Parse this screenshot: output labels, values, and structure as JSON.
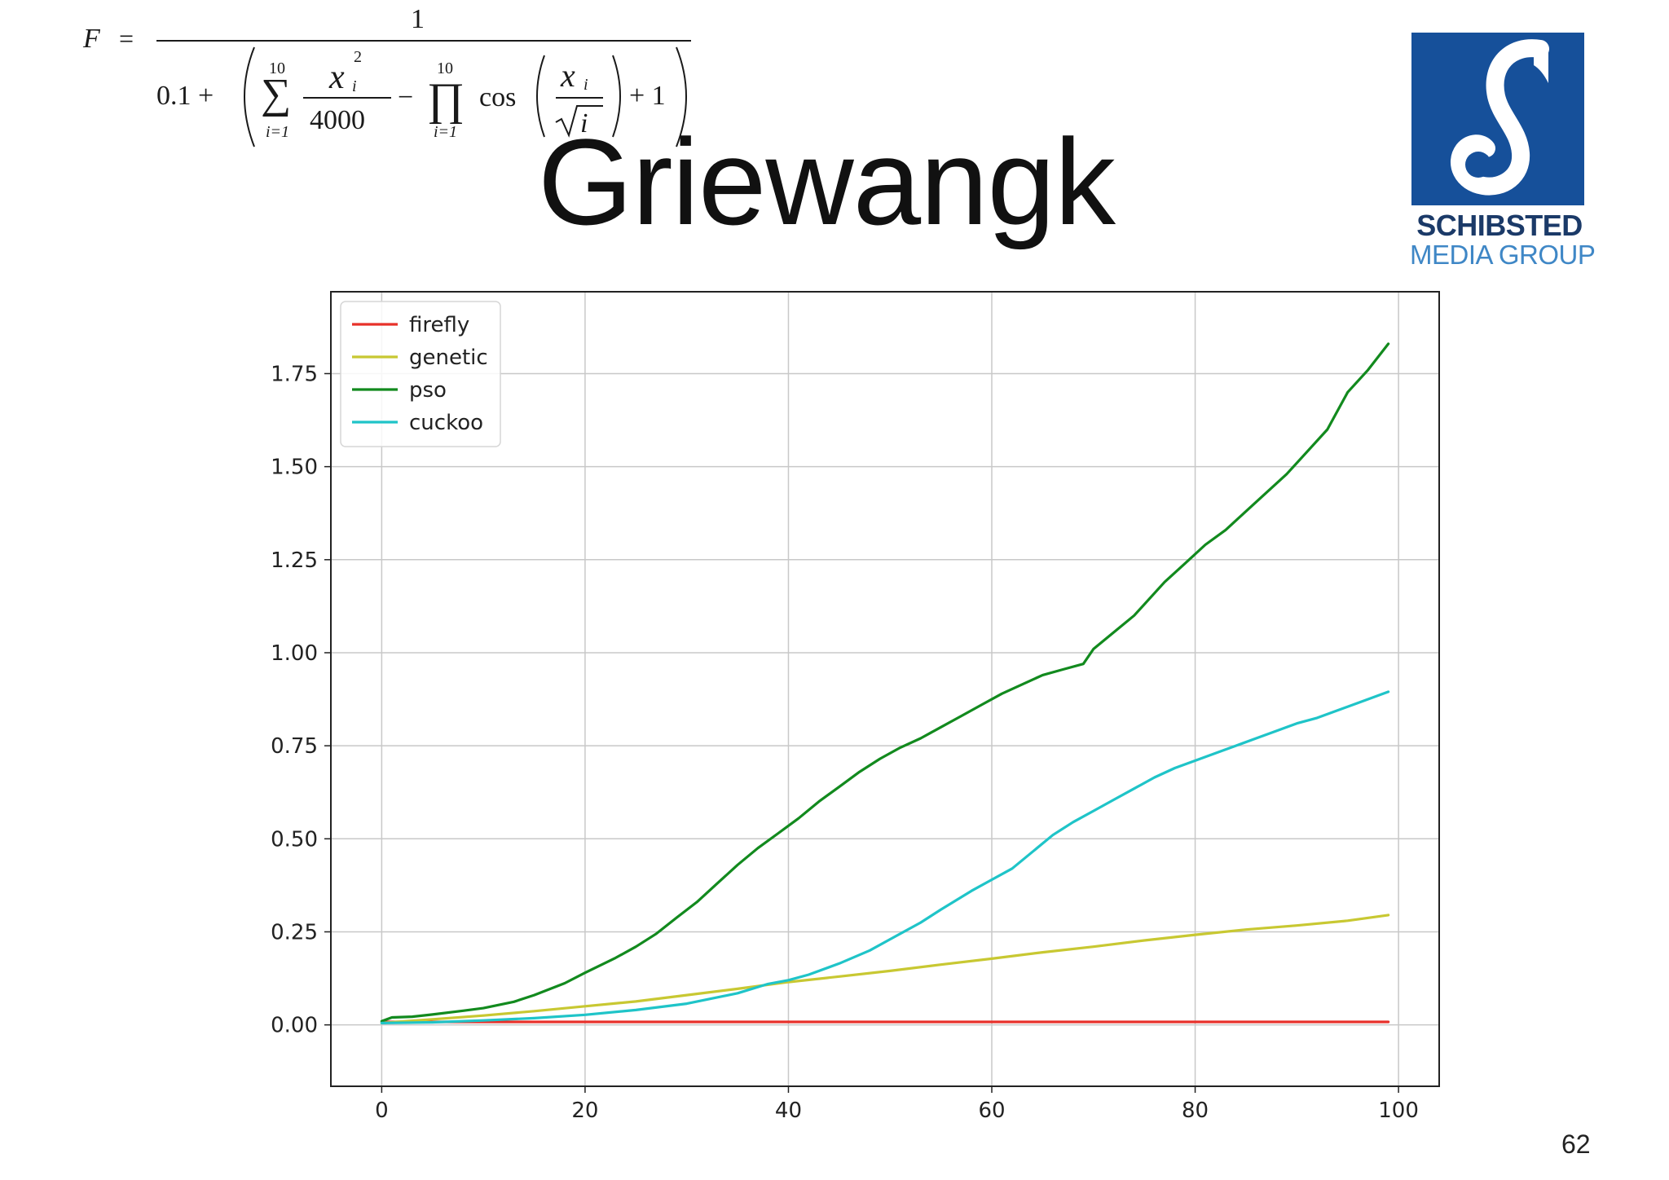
{
  "slide": {
    "title": "Griewangk",
    "page_number": "62"
  },
  "formula": {
    "lhs": "F",
    "equals": "=",
    "numerator": "1",
    "const": "0.1 +",
    "sum_upper": "10",
    "sum_lower": "i=1",
    "x_var": "x",
    "sub_i": "i",
    "exp_2": "2",
    "divisor": "4000",
    "minus": "−",
    "prod_upper": "10",
    "prod_lower": "i=1",
    "cos": "cos",
    "sqrt_i": "i",
    "plus_one": "+ 1"
  },
  "logo": {
    "brand_name": "SCHIBSTED",
    "brand_sub": "MEDIA GROUP",
    "box_color": "#16509a"
  },
  "chart_data": {
    "type": "line",
    "title": "",
    "xlabel": "",
    "ylabel": "",
    "xlim": [
      -5,
      104
    ],
    "ylim": [
      -0.165,
      1.97
    ],
    "grid": true,
    "legend_position": "top-left",
    "x_ticks": [
      0,
      20,
      40,
      60,
      80,
      100
    ],
    "x_tick_labels": [
      "0",
      "20",
      "40",
      "60",
      "80",
      "100"
    ],
    "y_ticks": [
      0,
      0.25,
      0.5,
      0.75,
      1.0,
      1.25,
      1.5,
      1.75
    ],
    "y_tick_labels": [
      "0.00",
      "0.25",
      "0.50",
      "0.75",
      "1.00",
      "1.25",
      "1.50",
      "1.75"
    ],
    "series": [
      {
        "name": "firefly",
        "color": "#e8312a",
        "x": [
          0,
          99
        ],
        "y": [
          0.008,
          0.008
        ]
      },
      {
        "name": "genetic",
        "color": "#c8c832",
        "x": [
          0,
          5,
          10,
          15,
          20,
          25,
          30,
          35,
          40,
          45,
          50,
          55,
          60,
          65,
          70,
          75,
          80,
          85,
          90,
          95,
          99
        ],
        "y": [
          0.005,
          0.015,
          0.025,
          0.037,
          0.05,
          0.063,
          0.08,
          0.097,
          0.115,
          0.13,
          0.145,
          0.162,
          0.178,
          0.195,
          0.21,
          0.227,
          0.242,
          0.256,
          0.267,
          0.28,
          0.295
        ]
      },
      {
        "name": "pso",
        "color": "#128a1e",
        "x": [
          0,
          1,
          3,
          5,
          8,
          10,
          13,
          15,
          18,
          20,
          23,
          25,
          27,
          29,
          31,
          33,
          35,
          37,
          39,
          41,
          43,
          45,
          47,
          49,
          51,
          53,
          55,
          57,
          59,
          61,
          63,
          65,
          67,
          69,
          70,
          72,
          74,
          76,
          77,
          79,
          81,
          83,
          85,
          87,
          89,
          91,
          93,
          95,
          97,
          99
        ],
        "y": [
          0.01,
          0.02,
          0.022,
          0.028,
          0.038,
          0.045,
          0.062,
          0.08,
          0.112,
          0.14,
          0.18,
          0.21,
          0.245,
          0.288,
          0.33,
          0.38,
          0.43,
          0.475,
          0.515,
          0.555,
          0.6,
          0.64,
          0.68,
          0.715,
          0.745,
          0.77,
          0.8,
          0.83,
          0.86,
          0.89,
          0.915,
          0.94,
          0.955,
          0.97,
          1.01,
          1.055,
          1.1,
          1.16,
          1.19,
          1.24,
          1.29,
          1.33,
          1.38,
          1.43,
          1.48,
          1.54,
          1.6,
          1.7,
          1.76,
          1.83
        ]
      },
      {
        "name": "cuckoo",
        "color": "#1fc4c8",
        "x": [
          0,
          5,
          10,
          15,
          20,
          25,
          30,
          35,
          38,
          40,
          42,
          45,
          48,
          50,
          53,
          55,
          58,
          60,
          62,
          64,
          66,
          68,
          70,
          72,
          74,
          76,
          78,
          80,
          82,
          84,
          86,
          88,
          90,
          92,
          94,
          96,
          99
        ],
        "y": [
          0.005,
          0.007,
          0.012,
          0.018,
          0.027,
          0.04,
          0.057,
          0.085,
          0.11,
          0.12,
          0.135,
          0.165,
          0.2,
          0.23,
          0.275,
          0.31,
          0.36,
          0.39,
          0.42,
          0.465,
          0.51,
          0.545,
          0.575,
          0.605,
          0.635,
          0.665,
          0.69,
          0.71,
          0.73,
          0.75,
          0.77,
          0.79,
          0.81,
          0.825,
          0.845,
          0.865,
          0.895
        ]
      }
    ]
  }
}
